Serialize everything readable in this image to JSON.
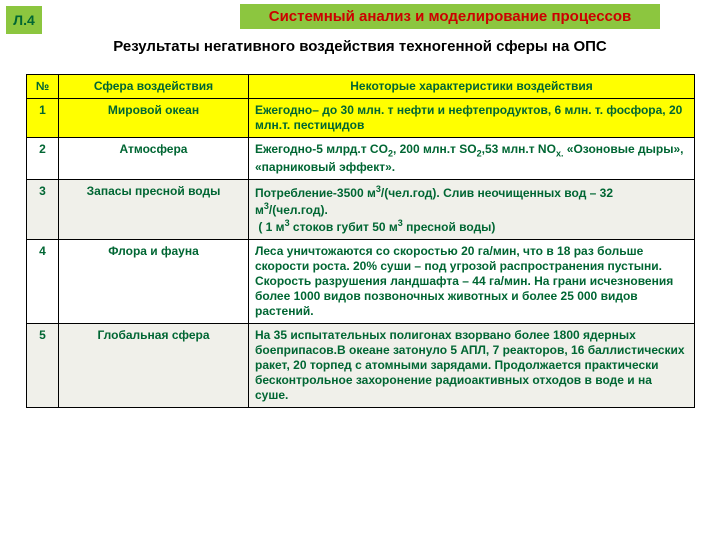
{
  "badge": {
    "label": "Л.4",
    "bg": "#8cc63f",
    "color": "#006633",
    "fontsize": 14
  },
  "header": {
    "text": "Системный анализ и моделирование процессов",
    "bg": "#8cc63f",
    "color": "#cc0000",
    "fontsize": 15
  },
  "subtitle": {
    "text": "Результаты негативного воздействия техногенной сферы на ОПС",
    "color": "#000000",
    "fontsize": 15
  },
  "table": {
    "header_bg": "#ffff00",
    "row_bg_alt": "#f0f0ea",
    "row_bg": "#ffffff",
    "text_color": "#006633",
    "fontsize": 12,
    "col_widths": [
      "32px",
      "190px",
      "446px"
    ],
    "columns": [
      "№",
      "Сфера воздействия",
      "Некоторые характеристики воздействия"
    ],
    "rows": [
      {
        "num": "1",
        "sphere": "Мировой океан",
        "char_html": "Ежегодно– до 30 млн. т нефти и нефтепродуктов, 6 млн. т. фосфора, 20 млн.т. пестицидов",
        "bg": "header"
      },
      {
        "num": "2",
        "sphere": "Атмосфера",
        "char_html": "Ежегодно-5 млрд.т CO<sub>2</sub>, 200 млн.т SO<sub>2</sub>,53 млн.т NO<sub>x.</sub> «Озоновые дыры», «парниковый эффект».",
        "bg": "plain"
      },
      {
        "num": "3",
        "sphere": "Запасы пресной воды",
        "char_html": "Потребление-3500 м<sup>3</sup>/(чел.год). Слив неочищенных вод – 32 м<sup>3</sup>/(чел.год).<br>&nbsp;( 1 м<sup>3</sup> стоков губит 50 м<sup>3</sup> пресной воды)",
        "bg": "alt"
      },
      {
        "num": "4",
        "sphere": "Флора и фауна",
        "char_html": "Леса уничтожаются со скоростью 20 га/мин, что в 18 раз больше скорости роста. 20% суши – под угрозой распространения пустыни. Скорость разрушения ландшафта – 44 га/мин. На грани исчезновения более  1000 видов позвоночных животных и более 25 000 видов растений.",
        "bg": "plain"
      },
      {
        "num": "5",
        "sphere": "Глобальная сфера",
        "char_html": "На 35 испытательных полигонах взорвано более 1800 ядерных боеприпасов.В океане затонуло 5 АПЛ, 7 реакторов, 16 баллистических ракет, 20 торпед с атомными зарядами. Продолжается практически бесконтрольное захоронение радиоактивных отходов в воде и на суше.",
        "bg": "alt"
      }
    ]
  }
}
